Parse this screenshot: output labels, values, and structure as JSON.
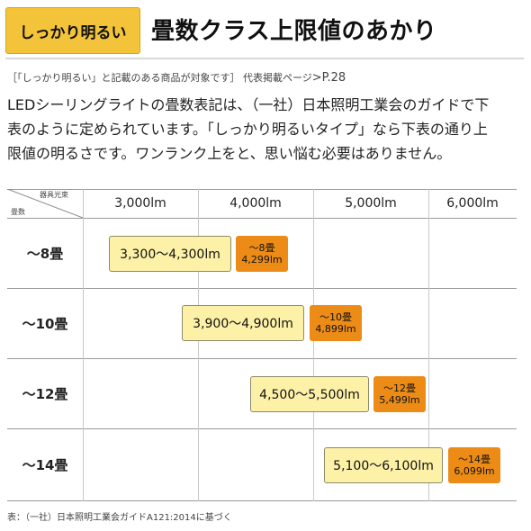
{
  "badge": "しっかり明るい",
  "title": "畳数クラス上限値のあかり",
  "note": {
    "text": "［「しっかり明るい」と記載のある商品が対象です］ 代表掲載ページ",
    "page": ">P.28"
  },
  "body_lines": [
    "LEDシーリングライトの畳数表記は、（一社）日本照明工業会のガイドで下",
    "表のように定められています。「しっかり明るいタイプ」なら下表の通り上",
    "限値の明るさです。ワンランク上をと、思い悩む必要はありません。"
  ],
  "table": {
    "corner_top": "器具光束",
    "corner_bottom": "畳数",
    "columns": [
      "3,000lm",
      "4,000lm",
      "5,000lm",
      "6,000lm"
    ],
    "rows": [
      {
        "label": "～8畳",
        "range": "3,300～4,300lm",
        "limit_top": "～8畳",
        "limit_bottom": "4,299lm"
      },
      {
        "label": "～10畳",
        "range": "3,900～4,900lm",
        "limit_top": "～10畳",
        "limit_bottom": "4,899lm"
      },
      {
        "label": "～12畳",
        "range": "4,500～5,500lm",
        "limit_top": "～12畳",
        "limit_bottom": "5,499lm"
      },
      {
        "label": "～14畳",
        "range": "5,100～6,100lm",
        "limit_top": "～14畳",
        "limit_bottom": "6,099lm"
      }
    ]
  },
  "source": "表：（一社）日本照明工業会ガイドA121:2014に基づく"
}
